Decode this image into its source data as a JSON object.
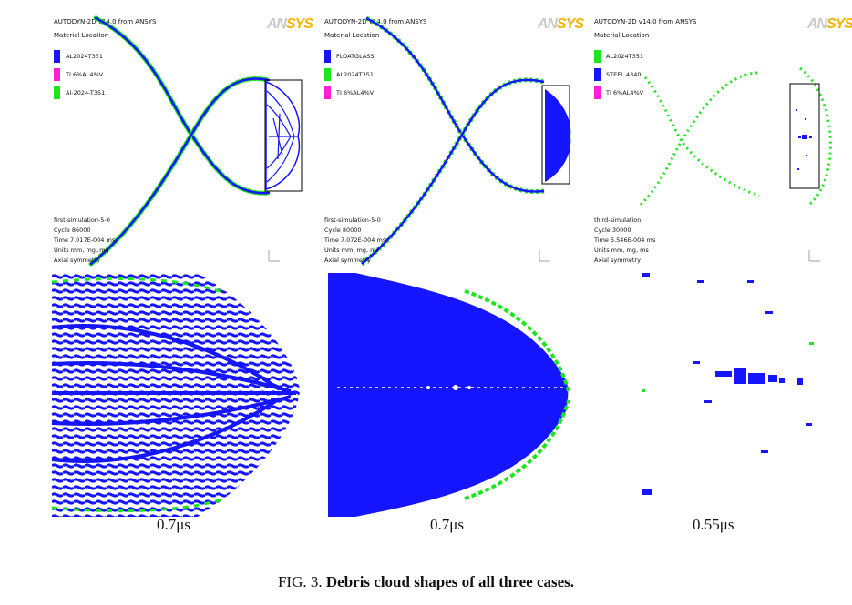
{
  "panels": [
    {
      "header": "AUTODYN-2D v14.0 from ANSYS",
      "subheader": "Material Location",
      "logo_an": "AN",
      "logo_sys": "SYS",
      "legend": [
        {
          "label": "AL2024T351",
          "color": "#1515ff"
        },
        {
          "label": "TI 6%AL4%V",
          "color": "#ff1fd6"
        },
        {
          "label": "Al-2024-T351",
          "color": "#1ee61e"
        }
      ],
      "info": [
        "first-simulation-5-0",
        "Cycle 86000",
        "Time 7.017E-004 ms",
        "Units mm, mg, ms",
        "Axial symmetry"
      ]
    },
    {
      "header": "AUTODYN-2D v14.0 from ANSYS",
      "subheader": "Material Location",
      "logo_an": "AN",
      "logo_sys": "SYS",
      "legend": [
        {
          "label": "FLOATGLASS",
          "color": "#1515ff"
        },
        {
          "label": "AL2024T351",
          "color": "#1ee61e"
        },
        {
          "label": "TI 6%AL4%V",
          "color": "#ff1fd6"
        }
      ],
      "info": [
        "first-simulation-5-0",
        "Cycle 80000",
        "Time 7.072E-004 ms",
        "Units mm, mg, ms",
        "Axial symmetry"
      ]
    },
    {
      "header": "AUTODYN-2D v14.0 from ANSYS",
      "subheader": "Material Location",
      "logo_an": "AN",
      "logo_sys": "SYS",
      "legend": [
        {
          "label": "AL2024T351",
          "color": "#1ee61e"
        },
        {
          "label": "STEEL 4340",
          "color": "#1515ff"
        },
        {
          "label": "TI 6%AL4%V",
          "color": "#ff1fd6"
        }
      ],
      "info": [
        "third-simulation",
        "Cycle 30000",
        "Time 5.546E-004 ms",
        "Units mm, mg, ms",
        "Axial symmetry"
      ]
    }
  ],
  "times": [
    "0.7μs",
    "0.7μs",
    "0.55μs"
  ],
  "caption": {
    "prefix": "FIG. 3. ",
    "title": "Debris cloud shapes of all three cases."
  },
  "colors": {
    "blue": "#1515ff",
    "green": "#1ee61e",
    "magenta": "#ff1fd6"
  }
}
